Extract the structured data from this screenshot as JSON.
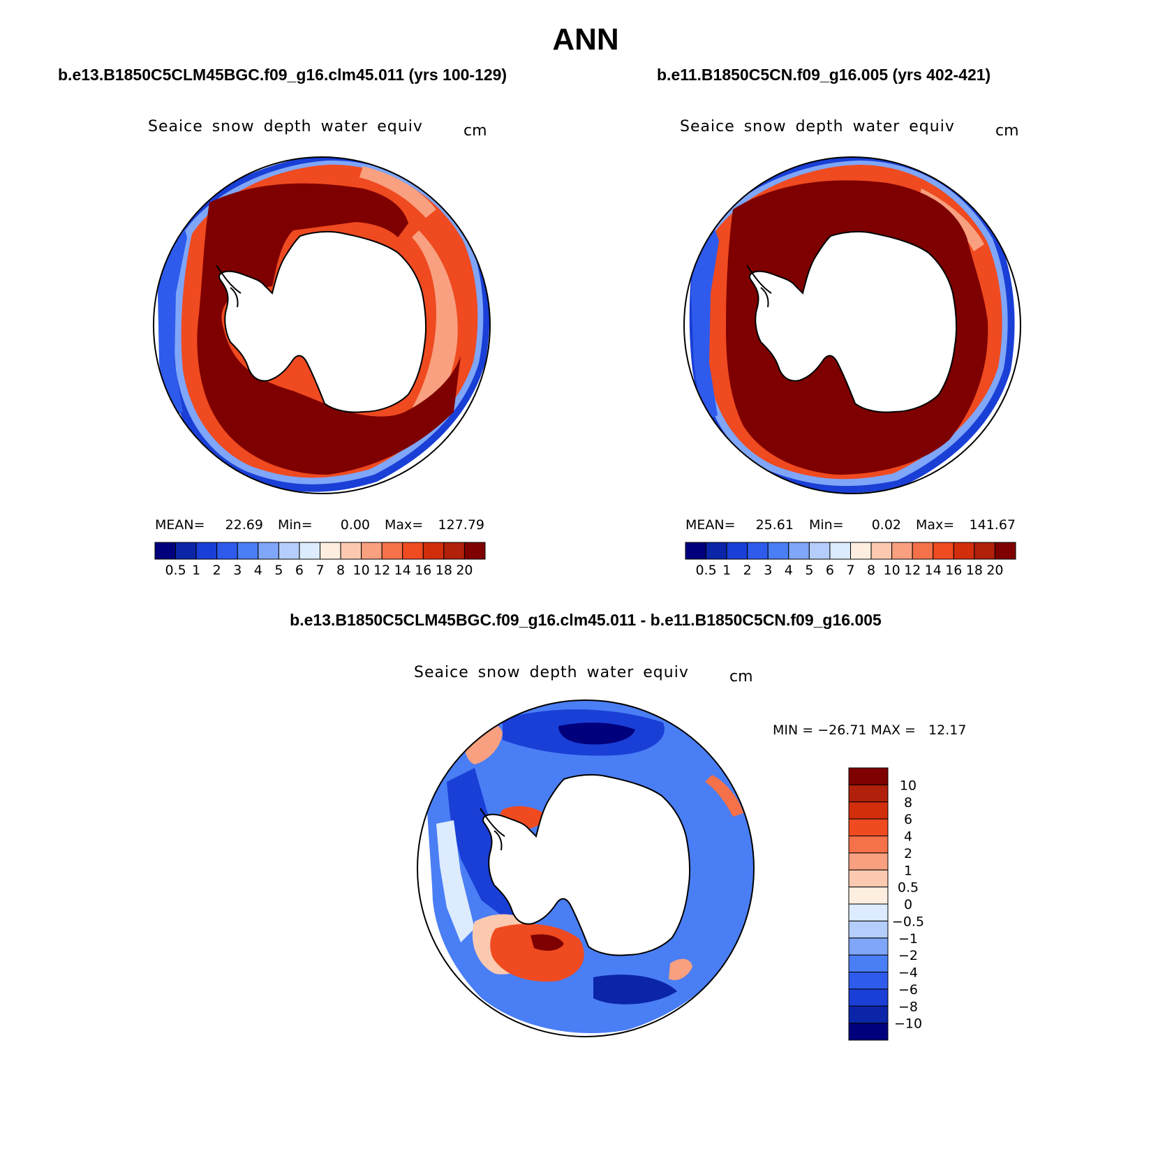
{
  "title": "ANN",
  "panels": [
    {
      "case": "b.e13.B1850C5CLM45BGC.f09_g16.clm45.011 (yrs 100-129)",
      "variable": "Seaice snow depth water equiv",
      "units": "cm",
      "stats": {
        "mean_label": "MEAN=",
        "mean": "22.69",
        "min_label": "Min=",
        "min": "0.00",
        "max_label": "Max=",
        "max": "127.79"
      }
    },
    {
      "case": "b.e11.B1850C5CN.f09_g16.005 (yrs 402-421)",
      "variable": "Seaice snow depth water equiv",
      "units": "cm",
      "stats": {
        "mean_label": "MEAN=",
        "mean": "25.61",
        "min_label": "Min=",
        "min": "0.02",
        "max_label": "Max=",
        "max": "141.67"
      }
    }
  ],
  "diff_panel": {
    "case": "b.e13.B1850C5CLM45BGC.f09_g16.clm45.011 - b.e11.B1850C5CN.f09_g16.005",
    "variable": "Seaice snow depth water equiv",
    "units": "cm",
    "minmax": "MIN = −26.71 MAX =   12.17"
  },
  "colorbar_levels": [
    "0.5",
    "1",
    "2",
    "3",
    "4",
    "5",
    "6",
    "7",
    "8",
    "10",
    "12",
    "14",
    "16",
    "18",
    "20"
  ],
  "colorbar_colors": [
    "#00007d",
    "#0b25a8",
    "#1a3fd6",
    "#2e5bec",
    "#4a7ef5",
    "#7fa6f8",
    "#b4cdfa",
    "#dcebfd",
    "#fdeee0",
    "#fbc9b0",
    "#f8a07f",
    "#f47149",
    "#ef4a20",
    "#d22e0c",
    "#b0200a",
    "#7f0000"
  ],
  "diff_levels": [
    "10",
    "8",
    "6",
    "4",
    "2",
    "1",
    "0.5",
    "0",
    "−0.5",
    "−1",
    "−2",
    "−4",
    "−6",
    "−8",
    "−10"
  ],
  "diff_colors": [
    "#7f0000",
    "#b0200a",
    "#d22e0c",
    "#ef4a20",
    "#f47149",
    "#f8a07f",
    "#fbc9b0",
    "#fdeee0",
    "#dcebfd",
    "#b4cdfa",
    "#7fa6f8",
    "#4a7ef5",
    "#2e5bec",
    "#1a3fd6",
    "#0b25a8",
    "#00007d"
  ],
  "palette": {
    "dark_red": "#7f0000",
    "red": "#d22e0c",
    "orange": "#f47149",
    "salmon": "#f8a07f",
    "peach": "#fbc9b0",
    "pale": "#fdeee0",
    "pale_blue": "#dcebfd",
    "light_blue": "#7fa6f8",
    "blue": "#2e5bec",
    "mid_blue": "#1a3fd6",
    "navy": "#00007d",
    "land": "#ffffff"
  }
}
